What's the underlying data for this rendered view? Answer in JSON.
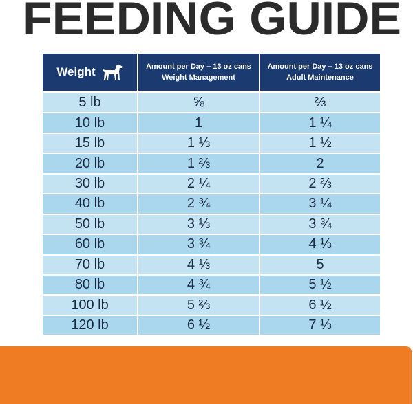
{
  "title": "FEEDING GUIDE",
  "table": {
    "header": [
      "Weight",
      [
        "Amount per Day – 13 oz cans",
        "Weight Management"
      ],
      [
        "Amount per Day – 13 oz cans",
        "Adult Maintenance"
      ]
    ],
    "rows": [
      [
        "5 lb",
        "⅝",
        "⅔"
      ],
      [
        "10 lb",
        "1",
        "1 ¼"
      ],
      [
        "15 lb",
        "1 ⅓",
        "1 ½"
      ],
      [
        "20 lb",
        "1 ⅔",
        "2"
      ],
      [
        "30 lb",
        "2 ¼",
        "2 ⅔"
      ],
      [
        "40 lb",
        "2 ¾",
        "3 ¼"
      ],
      [
        "50 lb",
        "3 ⅓",
        "3 ¾"
      ],
      [
        "60 lb",
        "3 ¾",
        "4 ⅓"
      ],
      [
        "70 lb",
        "4 ⅓",
        "5"
      ],
      [
        "80 lb",
        "4 ¾",
        "5 ½"
      ],
      [
        "100 lb",
        "5 ⅔",
        "6 ½"
      ],
      [
        "120 lb",
        "6 ½",
        "7 ⅓"
      ]
    ]
  }
}
